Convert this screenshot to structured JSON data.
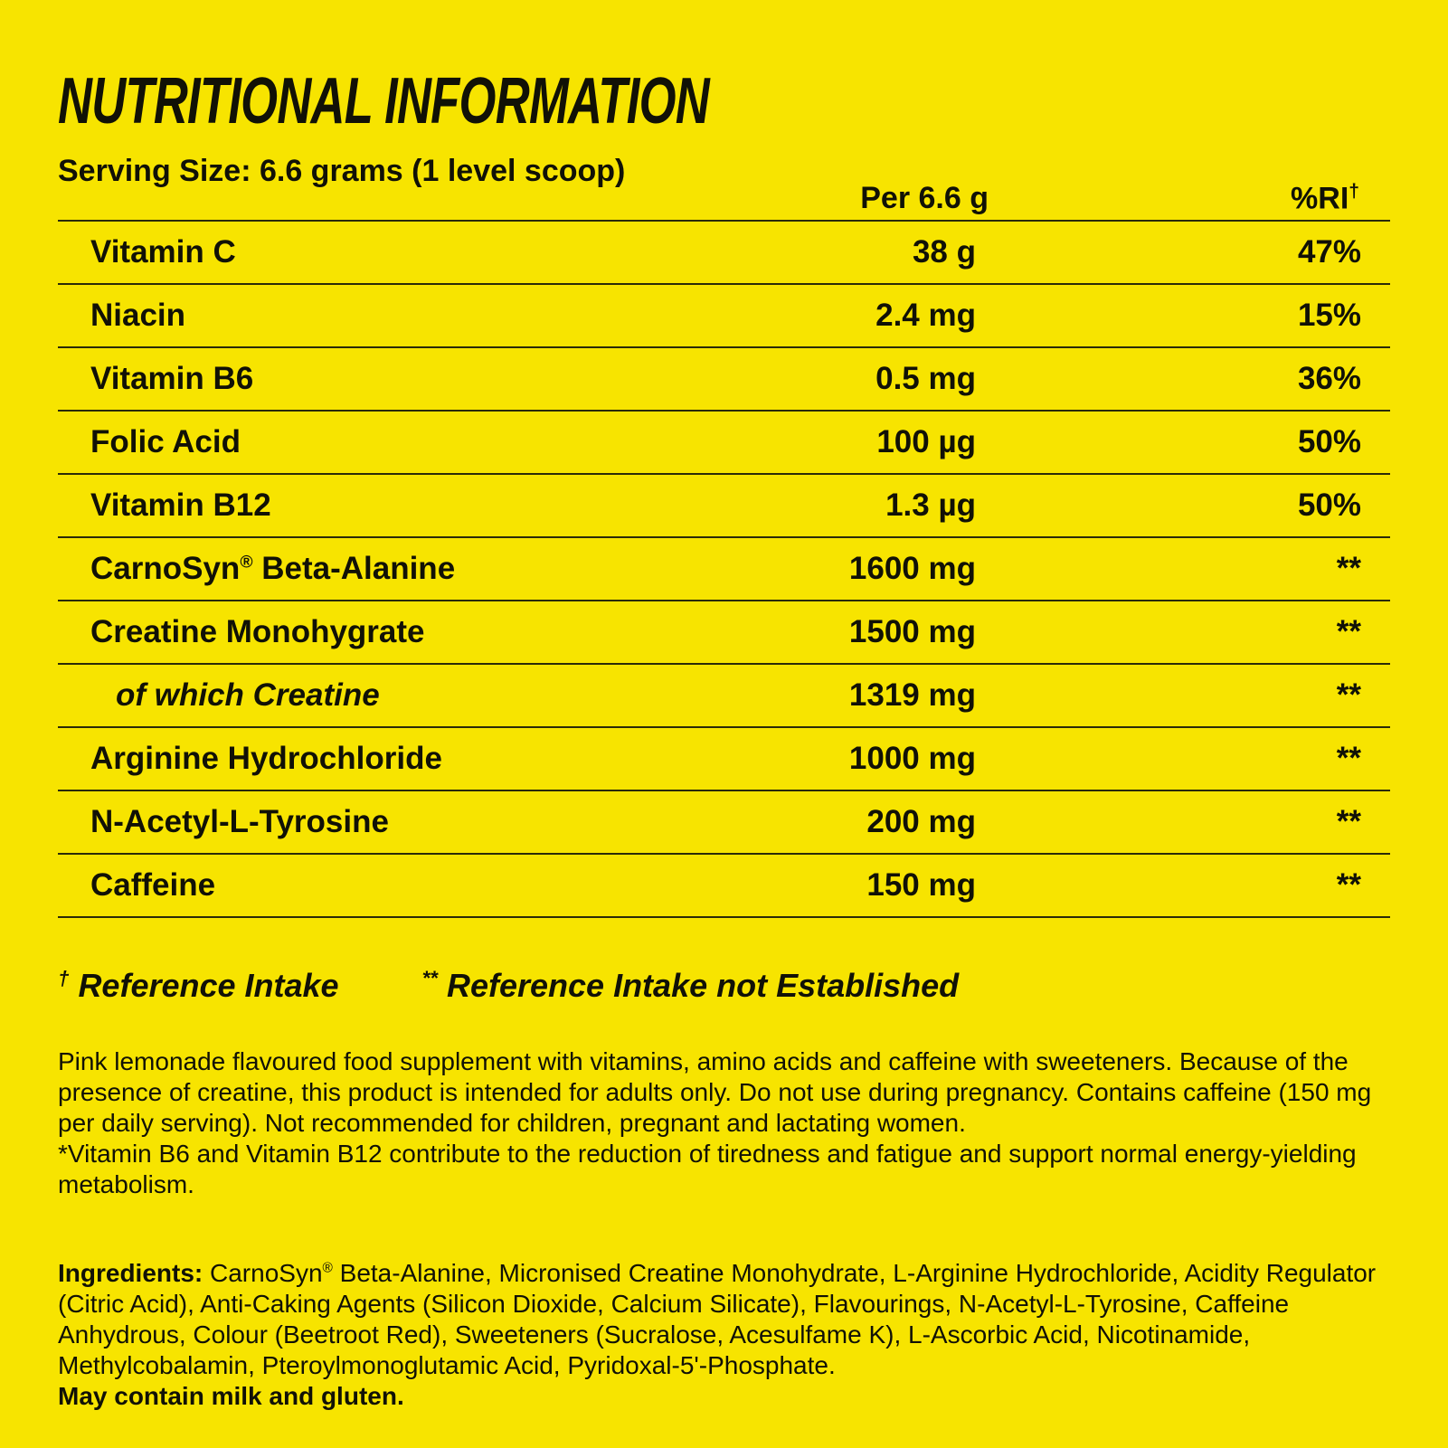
{
  "page": {
    "background_color": "#F7E400",
    "text_color": "#111106",
    "rule_color": "#2A2A08"
  },
  "header": {
    "title": "NUTRITIONAL INFORMATION",
    "serving_size": "Serving Size: 6.6 grams (1 level scoop)"
  },
  "table": {
    "col_amount_label": "Per 6.6 g",
    "col_ri_label": "%RI",
    "col_ri_sup": "†",
    "rows": [
      {
        "name": "Vitamin C",
        "amount": "38 g",
        "ri": "47%"
      },
      {
        "name": "Niacin",
        "amount": "2.4 mg",
        "ri": "15%"
      },
      {
        "name": "Vitamin B6",
        "amount": "0.5 mg",
        "ri": "36%"
      },
      {
        "name": "Folic Acid",
        "amount": "100 µg",
        "ri": "50%"
      },
      {
        "name": "Vitamin B12",
        "amount": "1.3 µg",
        "ri": "50%"
      },
      {
        "name": "CarnoSyn® Beta-Alanine",
        "amount": "1600 mg",
        "ri": "**"
      },
      {
        "name": "Creatine Monohygrate",
        "amount": "1500 mg",
        "ri": "**"
      },
      {
        "name": "of which Creatine",
        "amount": "1319 mg",
        "ri": "**",
        "style": "sub-italic"
      },
      {
        "name": "Arginine Hydrochloride",
        "amount": "1000 mg",
        "ri": "**"
      },
      {
        "name": "N-Acetyl-L-Tyrosine",
        "amount": "200 mg",
        "ri": "**"
      },
      {
        "name": "Caffeine",
        "amount": "150 mg",
        "ri": "**"
      }
    ]
  },
  "footnotes": [
    {
      "marker": "†",
      "text": "Reference Intake"
    },
    {
      "marker": "**",
      "text": "Reference Intake not Established"
    }
  ],
  "description": {
    "para1": "Pink lemonade flavoured food supplement with vitamins, amino acids and caffeine with sweeteners. Because of the presence of creatine, this product is intended for adults only. Do not use during pregnancy. Contains caffeine (150 mg per daily serving). Not recommended for children, pregnant and lactating women.",
    "para2": "*Vitamin B6 and Vitamin B12 contribute to the reduction of tiredness and fatigue and support normal energy-yielding metabolism."
  },
  "ingredients": {
    "label": "Ingredients:",
    "text": " CarnoSyn® Beta-Alanine, Micronised Creatine Monohydrate, L-Arginine Hydrochloride, Acidity Regulator (Citric Acid), Anti-Caking Agents (Silicon Dioxide, Calcium Silicate), Flavourings, N-Acetyl-L-Tyrosine, Caffeine Anhydrous, Colour (Beetroot Red), Sweeteners (Sucralose, Acesulfame K), L-Ascorbic Acid, Nicotinamide, Methylcobalamin, Pteroylmonoglutamic Acid, Pyridoxal-5'-Phosphate.",
    "allergen": "May contain milk and gluten."
  }
}
